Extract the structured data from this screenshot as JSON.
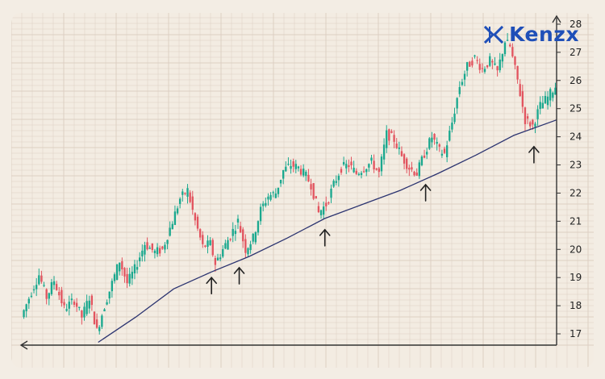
{
  "brand": {
    "name": "Kenzx",
    "logo_color": "#1f4fb8"
  },
  "colors": {
    "up_candle": "#1aa88e",
    "down_candle": "#e2545f",
    "moving_average": "#2c3470",
    "grid": "#dccfc3",
    "axis": "#333333"
  },
  "icons": {
    "support_marker": "up-arrow-icon",
    "axis_arrows": [
      "arrow-up-icon",
      "arrow-left-icon"
    ]
  },
  "chart_data": {
    "type": "candlestick",
    "title": "",
    "xlabel": "",
    "ylabel": "",
    "ylim": [
      16.6,
      28.4
    ],
    "y_ticks": [
      "17",
      "18",
      "19",
      "20",
      "21",
      "22",
      "23",
      "24",
      "25",
      "26",
      "27",
      "28"
    ],
    "grid": true,
    "price_path": [
      [
        0,
        17.6
      ],
      [
        4,
        18.5
      ],
      [
        7,
        19.1
      ],
      [
        10,
        18.3
      ],
      [
        13,
        18.9
      ],
      [
        17,
        17.9
      ],
      [
        21,
        18.2
      ],
      [
        24,
        17.6
      ],
      [
        27,
        18.3
      ],
      [
        30,
        17.1
      ],
      [
        33,
        18.0
      ],
      [
        36,
        18.8
      ],
      [
        39,
        19.6
      ],
      [
        42,
        18.8
      ],
      [
        45,
        19.3
      ],
      [
        49,
        20.2
      ],
      [
        53,
        19.9
      ],
      [
        56,
        20.0
      ],
      [
        60,
        21.0
      ],
      [
        63,
        21.8
      ],
      [
        66,
        22.1
      ],
      [
        69,
        21.0
      ],
      [
        72,
        20.1
      ],
      [
        75,
        20.2
      ],
      [
        77,
        19.5
      ],
      [
        80,
        20.0
      ],
      [
        83,
        20.5
      ],
      [
        86,
        21.0
      ],
      [
        89,
        20.0
      ],
      [
        92,
        20.4
      ],
      [
        95,
        21.4
      ],
      [
        98,
        21.9
      ],
      [
        101,
        22.0
      ],
      [
        104,
        22.8
      ],
      [
        107,
        23.0
      ],
      [
        110,
        22.9
      ],
      [
        113,
        22.6
      ],
      [
        115,
        22.3
      ],
      [
        118,
        21.3
      ],
      [
        121,
        21.6
      ],
      [
        124,
        22.3
      ],
      [
        127,
        22.9
      ],
      [
        130,
        23.0
      ],
      [
        133,
        22.7
      ],
      [
        136,
        22.9
      ],
      [
        139,
        23.1
      ],
      [
        142,
        22.7
      ],
      [
        145,
        24.1
      ],
      [
        148,
        23.9
      ],
      [
        151,
        23.3
      ],
      [
        154,
        22.9
      ],
      [
        157,
        22.7
      ],
      [
        160,
        23.4
      ],
      [
        163,
        24.0
      ],
      [
        166,
        23.5
      ],
      [
        168,
        23.4
      ],
      [
        171,
        24.5
      ],
      [
        174,
        25.8
      ],
      [
        177,
        26.5
      ],
      [
        180,
        26.8
      ],
      [
        183,
        26.4
      ],
      [
        186,
        26.7
      ],
      [
        189,
        26.3
      ],
      [
        192,
        27.4
      ],
      [
        194,
        27.2
      ],
      [
        197,
        26.0
      ],
      [
        200,
        24.6
      ],
      [
        203,
        24.4
      ],
      [
        206,
        25.1
      ],
      [
        209,
        25.4
      ],
      [
        212,
        25.8
      ]
    ],
    "moving_average": [
      [
        30,
        16.7
      ],
      [
        45,
        17.6
      ],
      [
        60,
        18.6
      ],
      [
        75,
        19.2
      ],
      [
        90,
        19.75
      ],
      [
        105,
        20.4
      ],
      [
        120,
        21.1
      ],
      [
        135,
        21.6
      ],
      [
        150,
        22.1
      ],
      [
        165,
        22.7
      ],
      [
        180,
        23.35
      ],
      [
        195,
        24.05
      ],
      [
        212,
        24.6
      ]
    ],
    "annotations": [
      {
        "type": "support-arrow",
        "x": 75,
        "y": 19.4
      },
      {
        "type": "support-arrow",
        "x": 86,
        "y": 19.75
      },
      {
        "type": "support-arrow",
        "x": 120,
        "y": 21.1
      },
      {
        "type": "support-arrow",
        "x": 160,
        "y": 22.7
      },
      {
        "type": "support-arrow",
        "x": 203,
        "y": 24.05
      }
    ]
  }
}
